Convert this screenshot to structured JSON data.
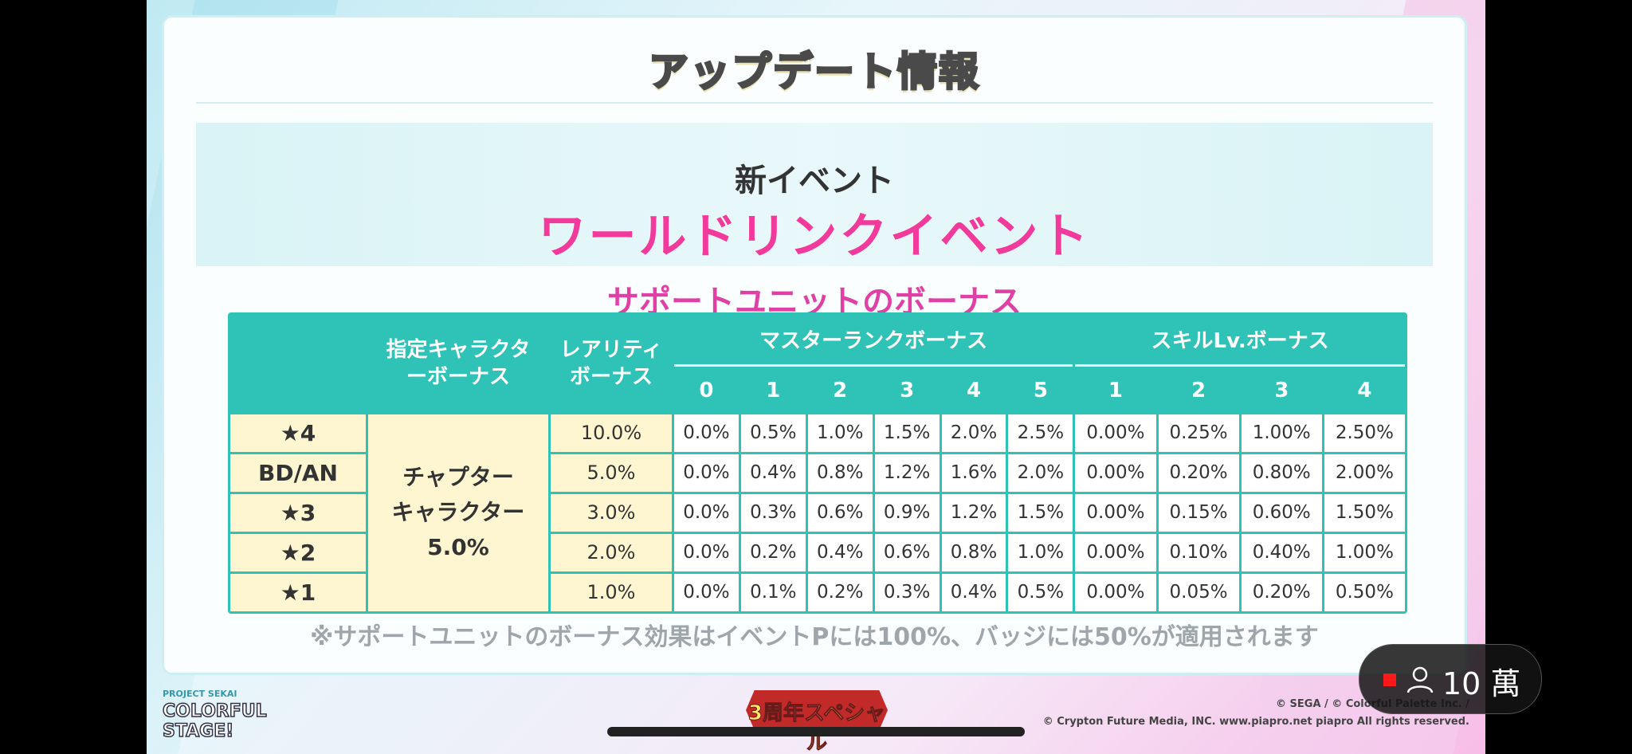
{
  "header": {
    "title": "アップデート情報"
  },
  "event": {
    "subtitle": "新イベント",
    "name": "ワールドリンクイベント"
  },
  "bonus_title": "サポートユニットのボーナス",
  "table": {
    "col_character": "指定キャラクターボーナス",
    "col_rarity": "レアリティボーナス",
    "col_master": "マスターランクボーナス",
    "col_skill": "スキルLv.ボーナス",
    "master_levels": [
      "0",
      "1",
      "2",
      "3",
      "4",
      "5"
    ],
    "skill_levels": [
      "1",
      "2",
      "3",
      "4"
    ],
    "character_bonus_lines": [
      "チャプター",
      "キャラクター",
      "5.0%"
    ],
    "rows": [
      {
        "label": "★4",
        "rarity": "10.0%",
        "master": [
          "0.0%",
          "0.5%",
          "1.0%",
          "1.5%",
          "2.0%",
          "2.5%"
        ],
        "skill": [
          "0.00%",
          "0.25%",
          "1.00%",
          "2.50%"
        ]
      },
      {
        "label": "BD/AN",
        "rarity": "5.0%",
        "master": [
          "0.0%",
          "0.4%",
          "0.8%",
          "1.2%",
          "1.6%",
          "2.0%"
        ],
        "skill": [
          "0.00%",
          "0.20%",
          "0.80%",
          "2.00%"
        ]
      },
      {
        "label": "★3",
        "rarity": "3.0%",
        "master": [
          "0.0%",
          "0.3%",
          "0.6%",
          "0.9%",
          "1.2%",
          "1.5%"
        ],
        "skill": [
          "0.00%",
          "0.15%",
          "0.60%",
          "1.50%"
        ]
      },
      {
        "label": "★2",
        "rarity": "2.0%",
        "master": [
          "0.0%",
          "0.2%",
          "0.4%",
          "0.6%",
          "0.8%",
          "1.0%"
        ],
        "skill": [
          "0.00%",
          "0.10%",
          "0.40%",
          "1.00%"
        ]
      },
      {
        "label": "★1",
        "rarity": "1.0%",
        "master": [
          "0.0%",
          "0.1%",
          "0.2%",
          "0.3%",
          "0.4%",
          "0.5%"
        ],
        "skill": [
          "0.00%",
          "0.05%",
          "0.20%",
          "0.50%"
        ]
      }
    ]
  },
  "note": "※サポートユニットのボーナス効果はイベントPには100%、バッジには50%が適用されます",
  "footer": {
    "logo_top": "PROJECT SEKAI",
    "logo_main": "COLORFUL STAGE!",
    "badge": "3周年スペシャル",
    "copyright1": "© SEGA / © Colorful Palette Inc. /",
    "copyright2": "© Crypton Future Media, INC. www.piapro.net piapro All rights reserved."
  },
  "live": {
    "viewer_count": "10 萬",
    "live_color": "#ff1a1a"
  }
}
